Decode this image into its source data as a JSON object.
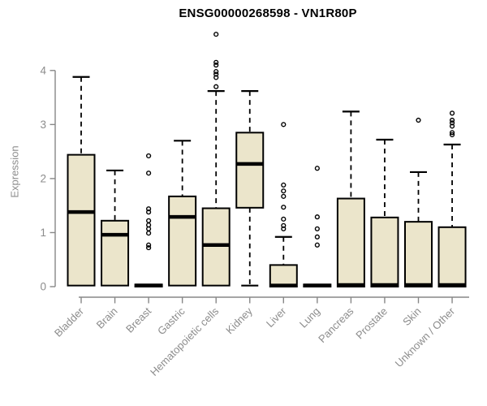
{
  "chart_data": {
    "type": "boxplot",
    "title": "ENSG00000268598 - VN1R80P",
    "xlabel": "",
    "ylabel": "Expression",
    "ylim": [
      0,
      4.8
    ],
    "yticks": [
      0,
      1,
      2,
      3,
      4
    ],
    "grid": false,
    "legend": "none",
    "box_fill_color": "#EBE5CB",
    "box_border_color": "#000000",
    "axis_color": "#878787",
    "axis_text_color": "#8c8c8c",
    "title_color": "#000000",
    "categories": [
      "Bladder",
      "Brain",
      "Breast",
      "Gastric",
      "Hematopoietic cells",
      "Kidney",
      "Liver",
      "Lung",
      "Pancreas",
      "Prostate",
      "Skin",
      "Unknown / Other"
    ],
    "series": [
      {
        "category": "Bladder",
        "low": 0.02,
        "q1": 0.02,
        "median": 1.38,
        "q3": 2.44,
        "high": 3.88,
        "outliers": []
      },
      {
        "category": "Brain",
        "low": 0.02,
        "q1": 0.02,
        "median": 0.96,
        "q3": 1.22,
        "high": 2.15,
        "outliers": []
      },
      {
        "category": "Breast",
        "low": 0.0,
        "q1": 0.0,
        "median": 0.02,
        "q3": 0.04,
        "high": 0.04,
        "outliers": [
          2.42,
          2.1,
          1.44,
          1.38,
          1.22,
          1.14,
          1.07,
          0.99,
          0.77,
          0.72
        ]
      },
      {
        "category": "Gastric",
        "low": 0.02,
        "q1": 0.02,
        "median": 1.29,
        "q3": 1.67,
        "high": 2.7,
        "outliers": []
      },
      {
        "category": "Hematopoietic cells",
        "low": 0.02,
        "q1": 0.02,
        "median": 0.77,
        "q3": 1.45,
        "high": 3.62,
        "outliers": [
          4.67,
          4.15,
          4.1,
          3.98,
          3.93,
          3.87,
          3.7
        ]
      },
      {
        "category": "Kidney",
        "low": 0.02,
        "q1": 1.46,
        "median": 2.27,
        "q3": 2.85,
        "high": 3.62,
        "outliers": []
      },
      {
        "category": "Liver",
        "low": 0.0,
        "q1": 0.0,
        "median": 0.02,
        "q3": 0.4,
        "high": 0.92,
        "outliers": [
          3.0,
          1.88,
          1.77,
          1.67,
          1.47,
          1.25,
          1.13,
          1.07
        ]
      },
      {
        "category": "Lung",
        "low": 0.0,
        "q1": 0.0,
        "median": 0.02,
        "q3": 0.04,
        "high": 0.04,
        "outliers": [
          2.19,
          1.29,
          1.07,
          0.92,
          0.77
        ]
      },
      {
        "category": "Pancreas",
        "low": 0.0,
        "q1": 0.0,
        "median": 0.03,
        "q3": 1.63,
        "high": 3.24,
        "outliers": []
      },
      {
        "category": "Prostate",
        "low": 0.0,
        "q1": 0.0,
        "median": 0.03,
        "q3": 1.28,
        "high": 2.72,
        "outliers": []
      },
      {
        "category": "Skin",
        "low": 0.0,
        "q1": 0.0,
        "median": 0.03,
        "q3": 1.2,
        "high": 2.12,
        "outliers": [
          3.08
        ]
      },
      {
        "category": "Unknown / Other",
        "low": 0.0,
        "q1": 0.0,
        "median": 0.03,
        "q3": 1.1,
        "high": 2.63,
        "outliers": [
          3.21,
          3.08,
          3.03,
          2.97,
          2.85,
          2.81
        ]
      }
    ]
  }
}
